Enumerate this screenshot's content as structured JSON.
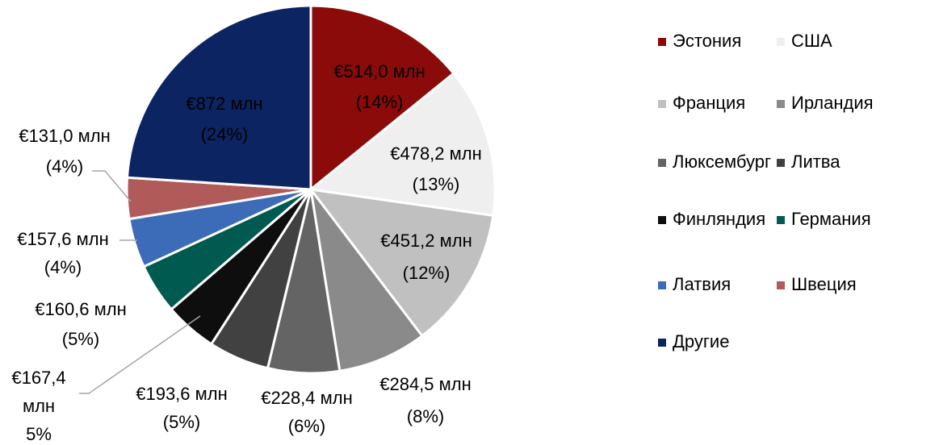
{
  "chart_data": {
    "type": "pie",
    "categories": [
      "Эстония",
      "США",
      "Франция",
      "Ирландия",
      "Люксембург",
      "Литва",
      "Финляндия",
      "Германия",
      "Латвия",
      "Швеция",
      "Другие"
    ],
    "values": [
      514.0,
      478.2,
      451.2,
      284.5,
      228.4,
      193.6,
      167.4,
      160.6,
      157.6,
      131.0,
      872
    ],
    "value_labels": [
      "€514,0 млн",
      "€478,2 млн",
      "€451,2 млн",
      "€284,5 млн",
      "€228,4 млн",
      "€193,6 млн",
      "€167,4 млн",
      "€160,6 млн",
      "€157,6 млн",
      "€131,0 млн",
      "€872 млн"
    ],
    "percents": [
      14,
      13,
      12,
      8,
      6,
      5,
      5,
      5,
      4,
      4,
      24
    ],
    "percent_labels": [
      "(14%)",
      "(13%)",
      "(12%)",
      "(8%)",
      "(6%)",
      "(5%)",
      "5%",
      "(5%)",
      "(4%)",
      "(4%)",
      "(24%)"
    ],
    "colors": [
      "#8b0a0a",
      "#efefef",
      "#c0c0c0",
      "#8a8a8a",
      "#646464",
      "#414141",
      "#0e0e0e",
      "#005a50",
      "#3c6bb7",
      "#b05a5a",
      "#0d2463"
    ],
    "legend": "right"
  }
}
